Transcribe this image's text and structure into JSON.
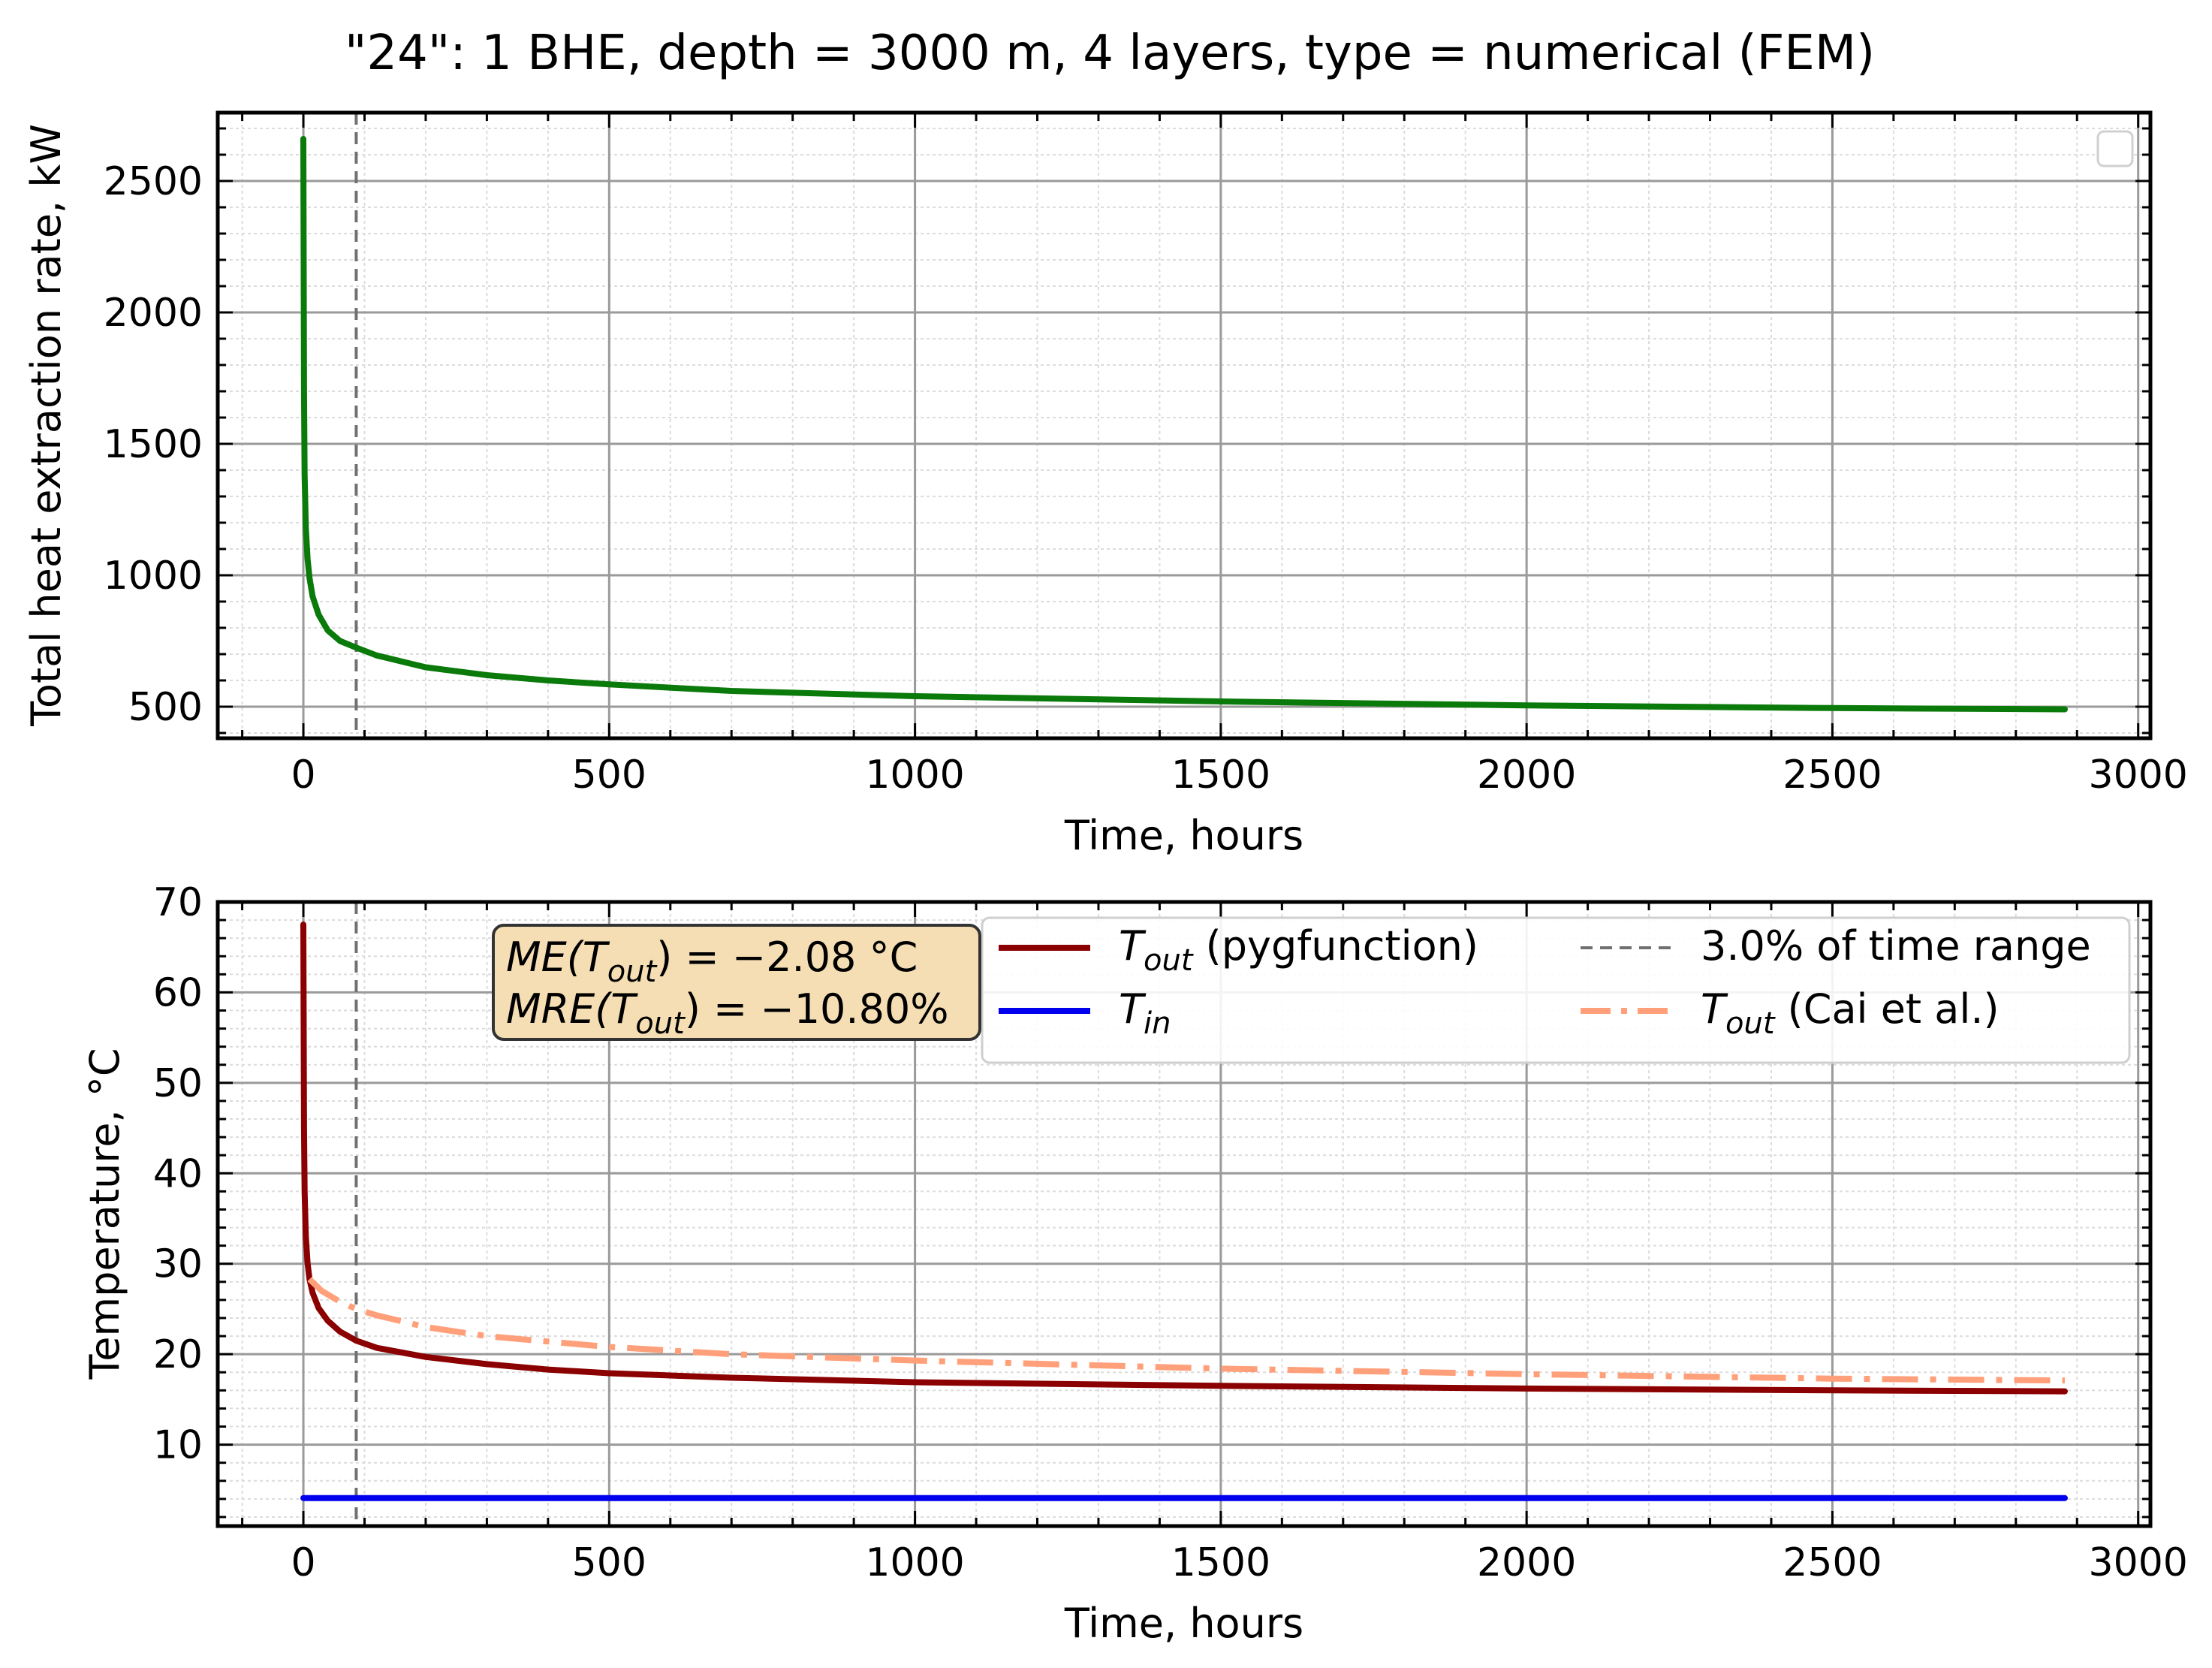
{
  "figure": {
    "title": "\"24\": 1 BHE, depth = 3000 m, 4 layers, type = numerical (FEM)"
  },
  "chart_data": [
    {
      "type": "line",
      "title": "\"24\": 1 BHE, depth = 3000 m, 4 layers, type = numerical (FEM)",
      "xlabel": "Time, hours",
      "ylabel": "Total heat extraction rate, kW",
      "xlim": [
        -140,
        3020
      ],
      "ylim": [
        380,
        2760
      ],
      "xticks": [
        0,
        500,
        1000,
        1500,
        2000,
        2500,
        3000
      ],
      "yticks": [
        500,
        1000,
        1500,
        2000,
        2500
      ],
      "grid": true,
      "legend": "top-right (empty)",
      "vline": {
        "x": 86.4,
        "style": "dashed",
        "color": "#707070"
      },
      "series": [
        {
          "color": "#0a7a0a",
          "x": [
            0,
            1,
            2,
            4,
            7,
            10,
            15,
            25,
            40,
            60,
            86.4,
            120,
            200,
            300,
            400,
            500,
            700,
            1000,
            1500,
            2000,
            2500,
            2880
          ],
          "y": [
            2660,
            1700,
            1380,
            1180,
            1060,
            990,
            920,
            850,
            790,
            750,
            725,
            695,
            650,
            620,
            600,
            585,
            560,
            540,
            520,
            505,
            495,
            490
          ]
        }
      ]
    },
    {
      "type": "line",
      "xlabel": "Time, hours",
      "ylabel": "Temperature, °C",
      "xlim": [
        -140,
        3020
      ],
      "ylim": [
        1,
        70
      ],
      "xticks": [
        0,
        500,
        1000,
        1500,
        2000,
        2500,
        3000
      ],
      "yticks": [
        10,
        20,
        30,
        40,
        50,
        60,
        70
      ],
      "grid": true,
      "legend": "top-right",
      "vline": {
        "x": 86.4,
        "style": "dashed",
        "color": "#707070",
        "label": "3.0% of time range"
      },
      "annotation": {
        "line1_main": "ME(T",
        "line1_sub": "out",
        "line1_rest": ") = −2.08 °C",
        "line2_main": "MRE(T",
        "line2_sub": "out",
        "line2_rest": ") = −10.80%"
      },
      "series": [
        {
          "name_main": "T",
          "name_sub": "out",
          "name_rest": " (pygfunction)",
          "color": "#8b0000",
          "style": "solid",
          "x": [
            0,
            1,
            2,
            4,
            7,
            10,
            15,
            25,
            40,
            60,
            86.4,
            120,
            200,
            300,
            400,
            500,
            700,
            1000,
            1500,
            2000,
            2500,
            2880
          ],
          "y": [
            67.5,
            45,
            38,
            33,
            30,
            28.3,
            26.8,
            25.1,
            23.7,
            22.5,
            21.5,
            20.7,
            19.7,
            18.9,
            18.3,
            17.9,
            17.4,
            16.9,
            16.5,
            16.2,
            16.0,
            15.9
          ]
        },
        {
          "name_main": "T",
          "name_sub": "in",
          "name_rest": "",
          "color": "#0000ee",
          "style": "solid",
          "x": [
            0,
            2880
          ],
          "y": [
            4.1,
            4.1
          ]
        },
        {
          "name_main": "T",
          "name_sub": "out",
          "name_rest": " (Cai et al.)",
          "color": "#ffa07a",
          "style": "dashdot",
          "x": [
            10,
            30,
            60,
            86.4,
            120,
            200,
            300,
            500,
            700,
            1000,
            1500,
            2000,
            2500,
            2880
          ],
          "y": [
            28.3,
            27,
            25.8,
            25.0,
            24.3,
            23.0,
            22.0,
            20.8,
            20.0,
            19.3,
            18.4,
            17.8,
            17.3,
            17.1
          ]
        }
      ]
    }
  ]
}
